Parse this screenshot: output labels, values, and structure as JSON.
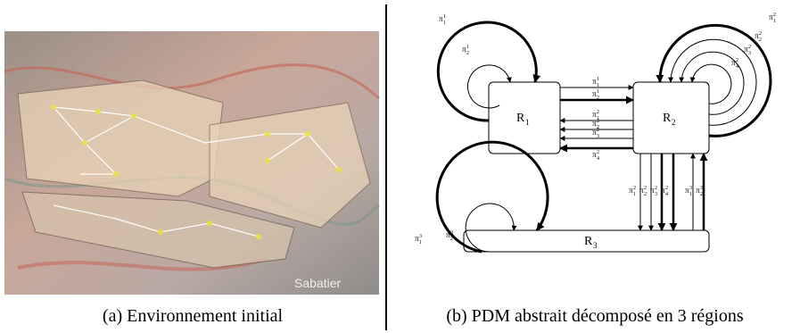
{
  "figure": {
    "symbol": "π",
    "panel_a": {
      "caption": "(a) Environnement initial",
      "map_label": "Sabatier"
    },
    "panel_b": {
      "caption": "(b) PDM abstrait décomposé en 3 régions",
      "region_symbol": "R",
      "regions": [
        "1",
        "2",
        "3"
      ],
      "policy_labels": [
        {
          "sup": "1",
          "sub": "1"
        },
        {
          "sup": "1",
          "sub": "2"
        },
        {
          "sup": "2",
          "sub": "1"
        },
        {
          "sup": "2",
          "sub": "2"
        },
        {
          "sup": "2",
          "sub": "3"
        },
        {
          "sup": "2",
          "sub": "4"
        },
        {
          "sup": "1",
          "sub": "1"
        },
        {
          "sup": "1",
          "sub": "2"
        },
        {
          "sup": "2",
          "sub": "1"
        },
        {
          "sup": "2",
          "sub": "2"
        },
        {
          "sup": "2",
          "sub": "3"
        },
        {
          "sup": "2",
          "sub": "4"
        },
        {
          "sup": "2",
          "sub": "1"
        },
        {
          "sup": "2",
          "sub": "2"
        },
        {
          "sup": "2",
          "sub": "3"
        },
        {
          "sup": "2",
          "sub": "4"
        },
        {
          "sup": "3",
          "sub": "1"
        },
        {
          "sup": "3",
          "sub": "2"
        },
        {
          "sup": "3",
          "sub": "1"
        },
        {
          "sup": "3",
          "sub": "2"
        }
      ]
    }
  }
}
